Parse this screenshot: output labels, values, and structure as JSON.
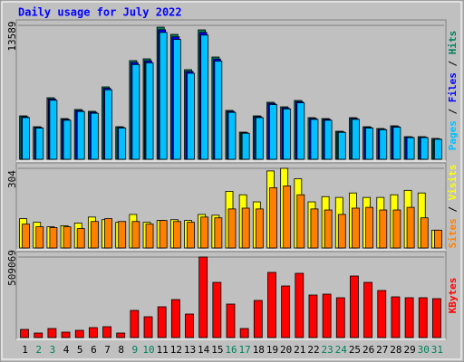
{
  "chart_data": {
    "type": "bar",
    "title": "Daily usage for July 2022",
    "categories": [
      "1",
      "2",
      "3",
      "4",
      "5",
      "6",
      "7",
      "8",
      "9",
      "10",
      "11",
      "12",
      "13",
      "14",
      "15",
      "16",
      "17",
      "18",
      "19",
      "20",
      "21",
      "22",
      "23",
      "24",
      "25",
      "26",
      "27",
      "28",
      "29",
      "30",
      "31"
    ],
    "highlight_days": [
      2,
      3,
      9,
      10,
      16,
      17,
      23,
      24,
      30,
      31
    ],
    "highlight_color": "#00805c",
    "legend_separator": " / ",
    "panels": [
      {
        "ylim": [
          0,
          13589
        ],
        "yticks": [
          13589
        ],
        "series": [
          {
            "name": "Hits",
            "color": "#00805c",
            "values": [
              4407,
              3305,
              6243,
              4131,
              5050,
              4866,
              7345,
              3305,
              10008,
              10191,
              13405,
              12671,
              9090,
              13130,
              10375,
              4958,
              2754,
              4407,
              5784,
              5325,
              5968,
              4223,
              4131,
              2846,
              4223,
              3305,
              3122,
              3397,
              2295,
              2295,
              2112
            ]
          },
          {
            "name": "Files",
            "color": "#0000ff",
            "values": [
              4320,
              3240,
              6120,
              4050,
              4950,
              4770,
              7200,
              3240,
              9810,
              9990,
              13140,
              12420,
              8910,
              12870,
              10170,
              4860,
              2700,
              4320,
              5670,
              5220,
              5850,
              4140,
              4050,
              2790,
              4140,
              3240,
              3060,
              3330,
              2250,
              2250,
              2070
            ]
          },
          {
            "name": "Pages",
            "color": "#00c0ff",
            "values": [
              4230,
              3170,
              5990,
              3960,
              4850,
              4670,
              7050,
              3170,
              9610,
              9780,
              12870,
              12160,
              8730,
              12600,
              9960,
              4760,
              2640,
              4230,
              5550,
              5110,
              5730,
              4050,
              3960,
              2730,
              4050,
              3170,
              3000,
              3260,
              2200,
              2200,
              2030
            ]
          }
        ]
      },
      {
        "ylim": [
          0,
          304
        ],
        "yticks": [
          304
        ],
        "series": [
          {
            "name": "Visits",
            "color": "#ffff00",
            "values": [
              112,
              98,
              81,
              85,
              95,
              118,
              108,
              98,
              128,
              98,
              105,
              108,
              105,
              128,
              125,
              216,
              203,
              176,
              294,
              304,
              264,
              176,
              196,
              193,
              210,
              193,
              193,
              203,
              220,
              210,
              68
            ]
          },
          {
            "name": "Sites",
            "color": "#ff8000",
            "values": [
              91,
              81,
              78,
              81,
              74,
              101,
              112,
              101,
              101,
              91,
              105,
              101,
              98,
              118,
              115,
              149,
              152,
              149,
              230,
              237,
              203,
              149,
              145,
              128,
              152,
              155,
              145,
              145,
              155,
              115,
              68
            ]
          }
        ]
      },
      {
        "ylim": [
          0,
          509069
        ],
        "yticks": [
          509069
        ],
        "series": [
          {
            "name": "KBytes",
            "color": "#ff0000",
            "values": [
              51480,
              28600,
              57200,
              34320,
              45760,
              62920,
              68640,
              28600,
              171600,
              131560,
              194480,
              240240,
              148720,
              509069,
              348920,
              211640,
              57200,
              234520,
              411840,
              326040,
              406120,
              268840,
              274560,
              251680,
              388960,
              348920,
              297440,
              257400,
              251680,
              251680,
              245960
            ]
          }
        ]
      }
    ]
  }
}
